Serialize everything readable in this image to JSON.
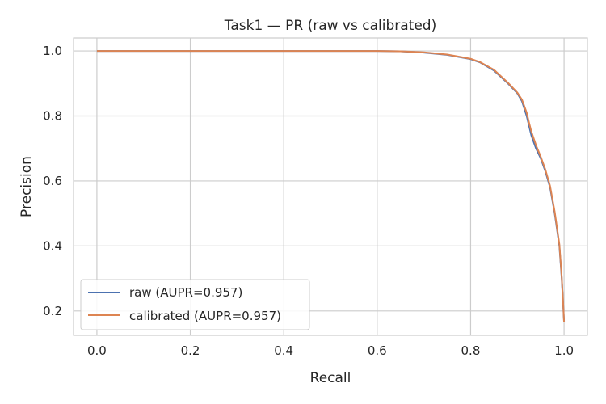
{
  "chart_data": {
    "type": "line",
    "title": "Task1 — PR (raw vs calibrated)",
    "xlabel": "Recall",
    "ylabel": "Precision",
    "xlim": [
      -0.05,
      1.05
    ],
    "ylim": [
      0.125,
      1.04
    ],
    "xticks": [
      0.0,
      0.2,
      0.4,
      0.6,
      0.8,
      1.0
    ],
    "xtick_labels": [
      "0.0",
      "0.2",
      "0.4",
      "0.6",
      "0.8",
      "1.0"
    ],
    "yticks": [
      0.2,
      0.4,
      0.6,
      0.8,
      1.0
    ],
    "ytick_labels": [
      "0.2",
      "0.4",
      "0.6",
      "0.8",
      "1.0"
    ],
    "grid": true,
    "legend_position": "lower-left",
    "series": [
      {
        "name": "raw (AUPR=0.957)",
        "color": "#4c72b0",
        "x": [
          0.0,
          0.5,
          0.6,
          0.65,
          0.7,
          0.75,
          0.8,
          0.82,
          0.85,
          0.88,
          0.9,
          0.91,
          0.92,
          0.925,
          0.93,
          0.94,
          0.95,
          0.96,
          0.97,
          0.98,
          0.99,
          0.995,
          0.998,
          1.0
        ],
        "y": [
          1.0,
          1.0,
          1.0,
          0.999,
          0.995,
          0.988,
          0.975,
          0.965,
          0.94,
          0.9,
          0.87,
          0.845,
          0.8,
          0.77,
          0.74,
          0.7,
          0.67,
          0.63,
          0.58,
          0.5,
          0.4,
          0.3,
          0.22,
          0.165
        ]
      },
      {
        "name": "calibrated (AUPR=0.957)",
        "color": "#dd8452",
        "x": [
          0.0,
          0.5,
          0.6,
          0.65,
          0.7,
          0.75,
          0.8,
          0.82,
          0.85,
          0.88,
          0.9,
          0.91,
          0.92,
          0.925,
          0.93,
          0.94,
          0.95,
          0.96,
          0.97,
          0.98,
          0.99,
          0.995,
          0.998,
          1.0
        ],
        "y": [
          1.0,
          1.0,
          1.0,
          0.999,
          0.996,
          0.989,
          0.976,
          0.966,
          0.942,
          0.902,
          0.872,
          0.85,
          0.81,
          0.78,
          0.752,
          0.71,
          0.675,
          0.635,
          0.585,
          0.505,
          0.405,
          0.305,
          0.225,
          0.165
        ]
      }
    ]
  }
}
